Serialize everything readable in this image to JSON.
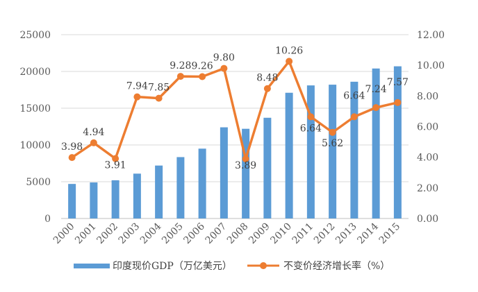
{
  "chart_data": {
    "type": "bar+line",
    "title": "",
    "categories": [
      "2000",
      "2001",
      "2002",
      "2003",
      "2004",
      "2005",
      "2006",
      "2007",
      "2008",
      "2009",
      "2010",
      "2011",
      "2012",
      "2013",
      "2014",
      "2015"
    ],
    "series": [
      {
        "name": "印度现价GDP（万亿美元）",
        "type": "bar",
        "axis": "left",
        "color": "#5B9BD5",
        "values": [
          4700,
          4900,
          5200,
          6100,
          7200,
          8350,
          9500,
          12400,
          12200,
          13700,
          17100,
          18100,
          18200,
          18600,
          20400,
          20700
        ]
      },
      {
        "name": "不变价经济增长率（%）",
        "type": "line",
        "axis": "right",
        "color": "#ED7D31",
        "values": [
          3.98,
          4.94,
          3.91,
          7.94,
          7.85,
          9.28,
          9.26,
          9.8,
          3.89,
          8.48,
          10.26,
          6.64,
          5.62,
          6.64,
          7.24,
          7.57
        ],
        "labels": [
          "3.98",
          "4.94",
          "3.91",
          "7.94",
          "7.85",
          "9.28",
          "9.26",
          "9.80",
          "3.89",
          "8.48",
          "10.26",
          "6.64",
          "5.62",
          "6.64",
          "7.24",
          "7.57"
        ]
      }
    ],
    "y_left": {
      "min": 0,
      "max": 25000,
      "ticks": [
        "0",
        "5000",
        "10000",
        "15000",
        "20000",
        "25000"
      ]
    },
    "y_right": {
      "min": 0,
      "max": 12,
      "ticks": [
        "0.00",
        "2.00",
        "4.00",
        "6.00",
        "8.00",
        "10.00",
        "12.00"
      ]
    },
    "grid": true,
    "legend_position": "bottom"
  }
}
